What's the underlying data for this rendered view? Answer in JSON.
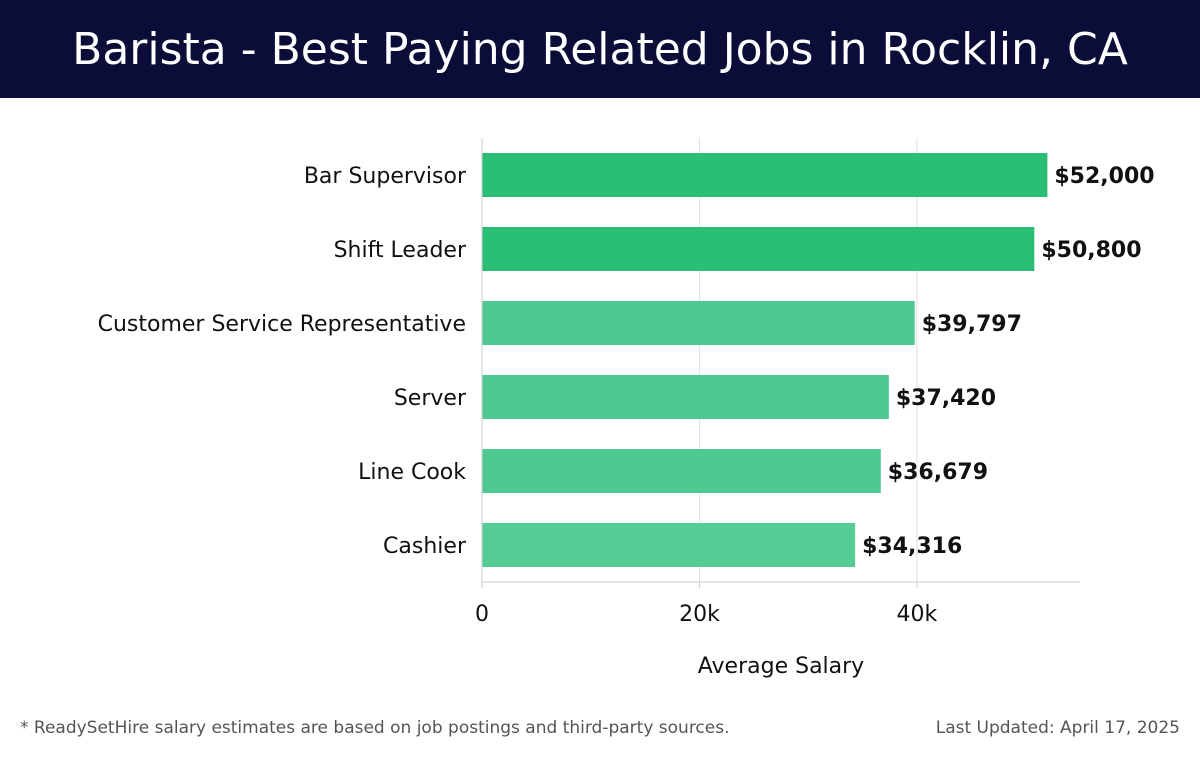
{
  "header": {
    "title": "Barista - Best Paying Related Jobs in Rocklin, CA"
  },
  "chart_data": {
    "type": "bar",
    "orientation": "horizontal",
    "categories": [
      "Bar Supervisor",
      "Shift Leader",
      "Customer Service Representative",
      "Server",
      "Line Cook",
      "Cashier"
    ],
    "values": [
      52000,
      50800,
      39797,
      37420,
      36679,
      34316
    ],
    "value_labels": [
      "$52,000",
      "$50,800",
      "$39,797",
      "$37,420",
      "$36,679",
      "$34,316"
    ],
    "bar_colors": [
      "#2bbf76",
      "#2bbf76",
      "#4fc98f",
      "#4fc98f",
      "#4fc98f",
      "#55cc94"
    ],
    "xlabel": "Average Salary",
    "ylabel": "",
    "xlim": [
      0,
      55000
    ],
    "xticks": [
      0,
      20000,
      40000
    ],
    "xtick_labels": [
      "0",
      "20k",
      "40k"
    ],
    "grid": "vertical"
  },
  "footer": {
    "note": "* ReadySetHire salary estimates are based on job postings and third-party sources.",
    "updated": "Last Updated: April 17, 2025"
  }
}
